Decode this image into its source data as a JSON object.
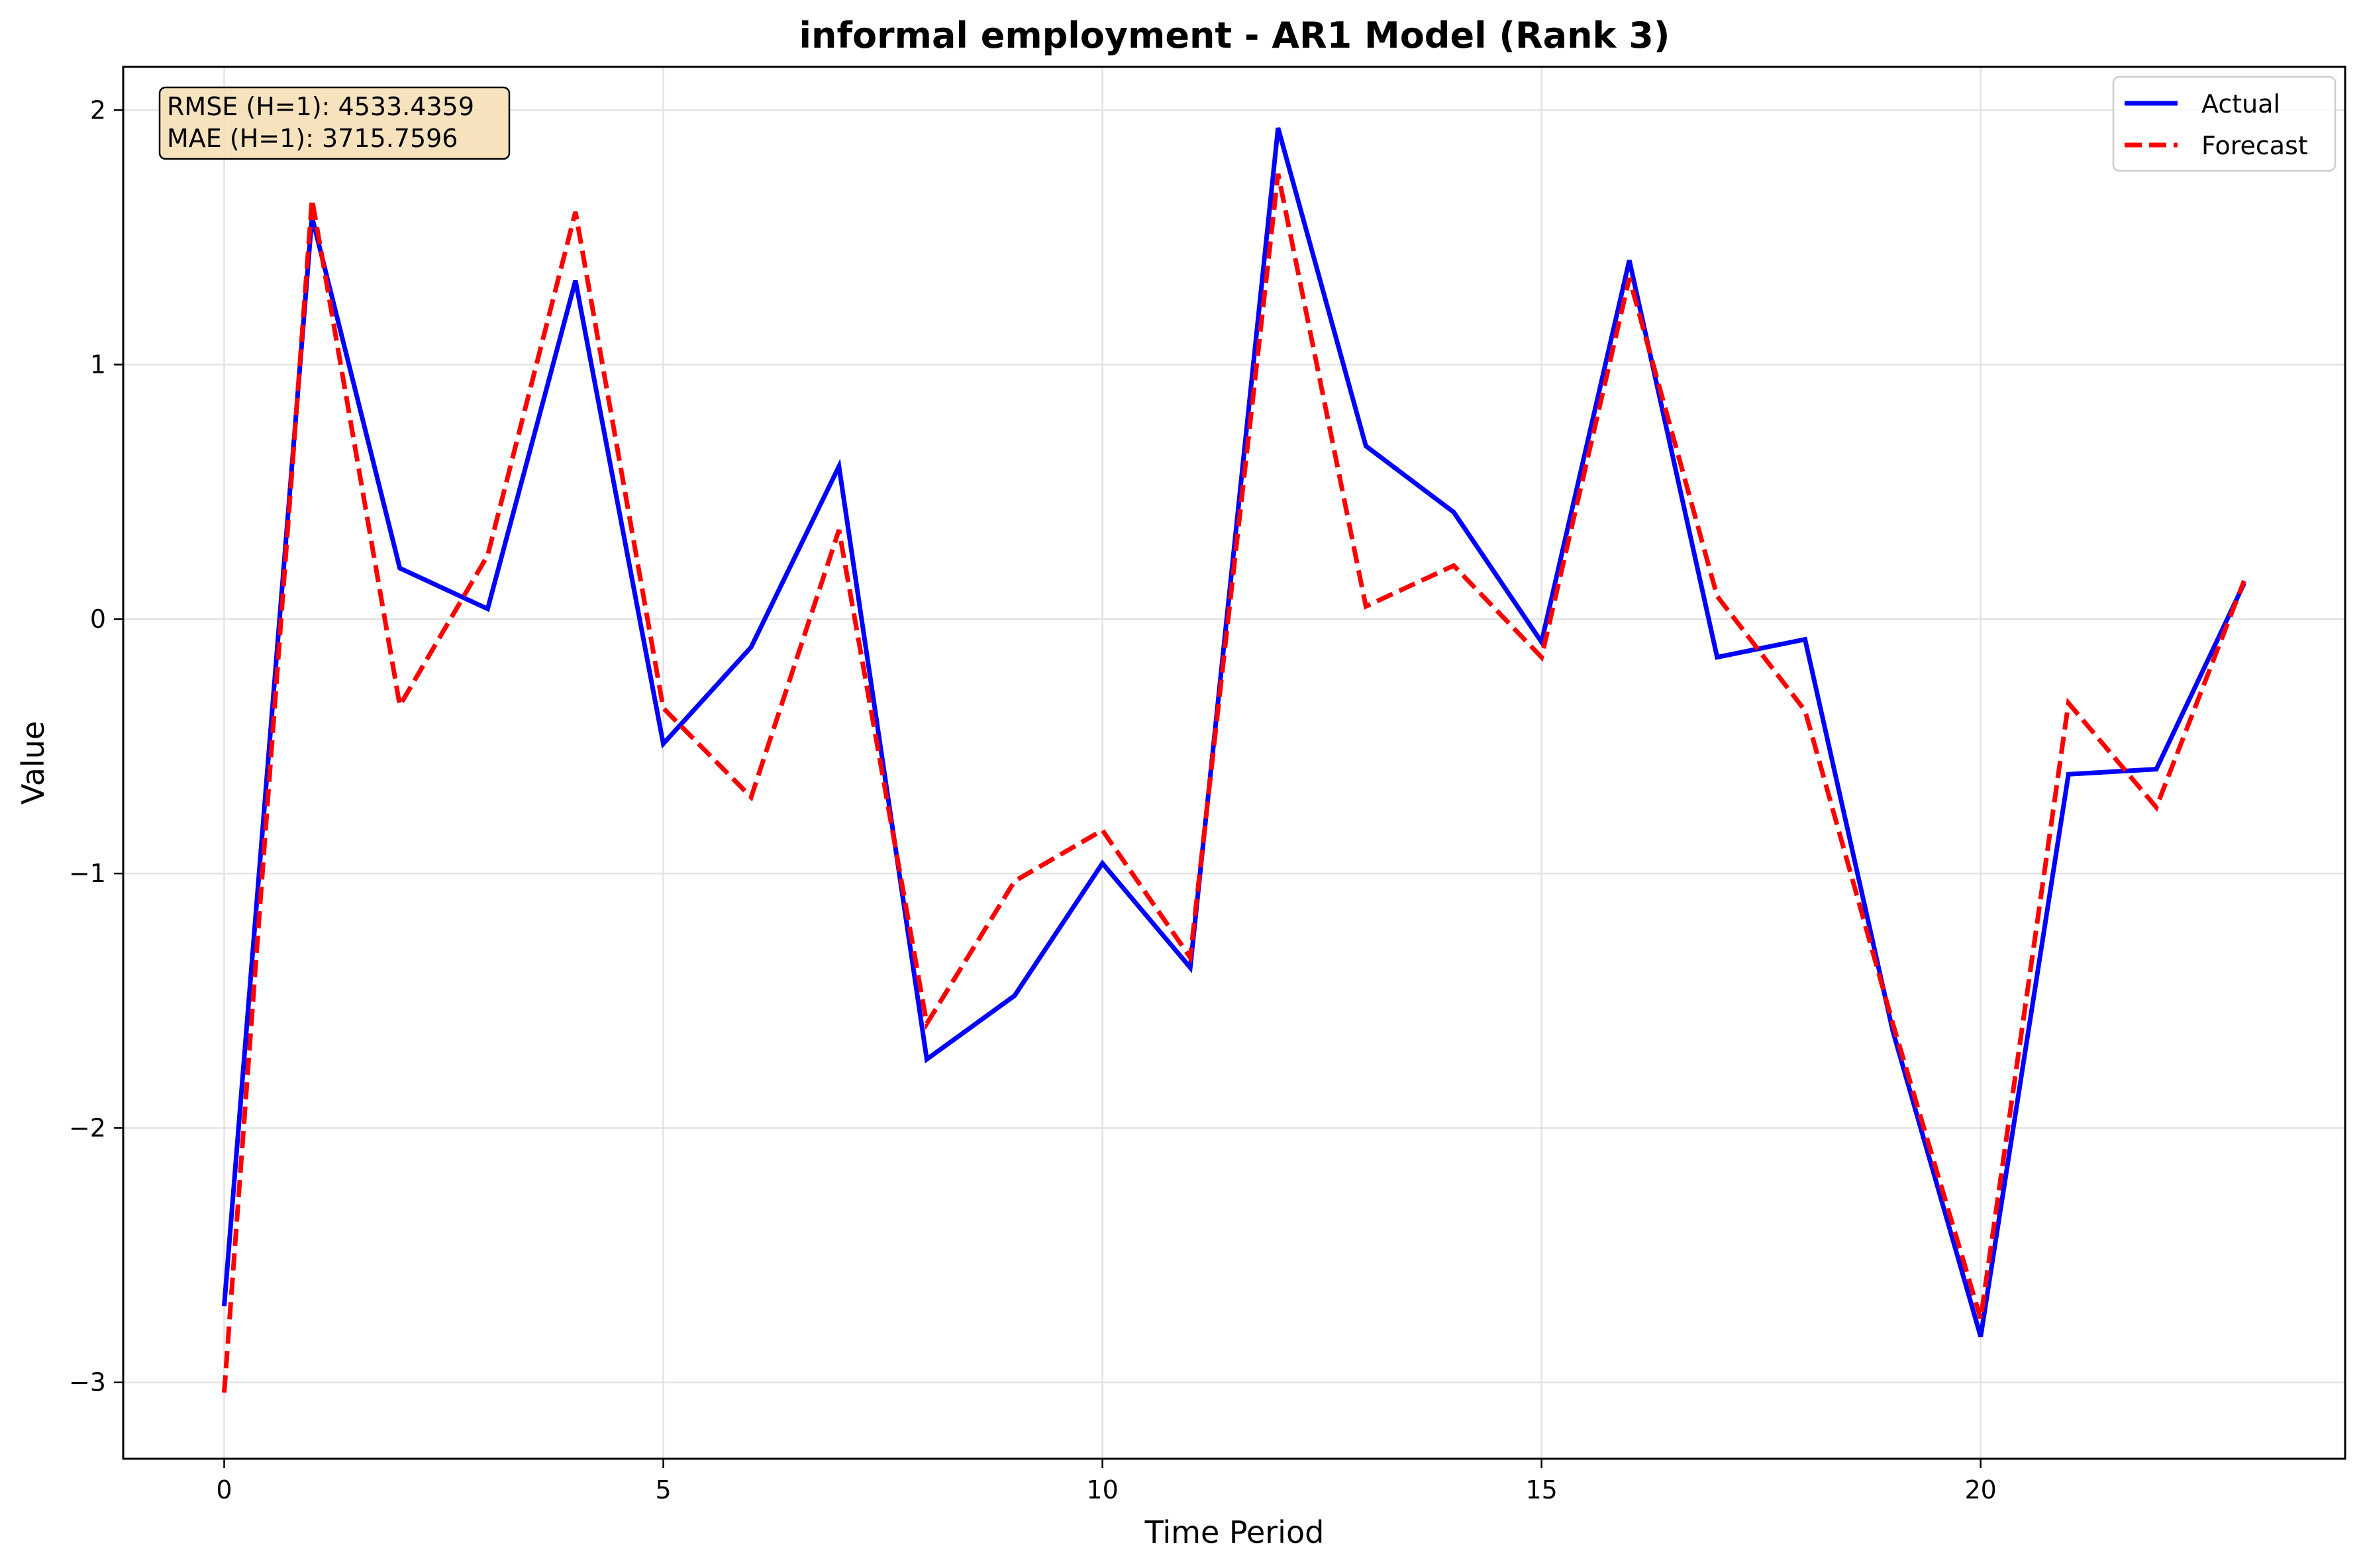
{
  "chart_data": {
    "type": "line",
    "title": "informal employment - AR1 Model (Rank 3)",
    "xlabel": "Time Period",
    "ylabel": "Value",
    "xlim": [
      -1.15,
      24.15
    ],
    "ylim": [
      -3.3,
      2.17
    ],
    "xticks": [
      0,
      5,
      10,
      15,
      20
    ],
    "yticks": [
      -3,
      -2,
      -1,
      0,
      1,
      2
    ],
    "grid": true,
    "legend_position": "top-right",
    "metrics": [
      "RMSE (H=1): 4533.4359",
      "MAE (H=1): 3715.7596"
    ],
    "x": [
      0,
      1,
      2,
      3,
      4,
      5,
      6,
      7,
      8,
      9,
      10,
      11,
      12,
      13,
      14,
      15,
      16,
      17,
      18,
      19,
      20,
      21,
      22,
      23
    ],
    "series": [
      {
        "name": "Actual",
        "color": "#0000ff",
        "style": "solid",
        "values": [
          -2.7,
          1.58,
          0.2,
          0.04,
          1.33,
          -0.49,
          -0.11,
          0.6,
          -1.73,
          -1.48,
          -0.96,
          -1.37,
          1.93,
          0.68,
          0.42,
          -0.09,
          1.41,
          -0.15,
          -0.08,
          -1.62,
          -2.82,
          -0.61,
          -0.59,
          0.14
        ]
      },
      {
        "name": "Forecast",
        "color": "#ff0000",
        "style": "dashed",
        "values": [
          -3.04,
          1.65,
          -0.34,
          0.25,
          1.6,
          -0.35,
          -0.7,
          0.35,
          -1.59,
          -1.03,
          -0.83,
          -1.33,
          1.75,
          0.05,
          0.21,
          -0.15,
          1.34,
          0.09,
          -0.36,
          -1.59,
          -2.75,
          -0.33,
          -0.74,
          0.15
        ]
      }
    ]
  }
}
